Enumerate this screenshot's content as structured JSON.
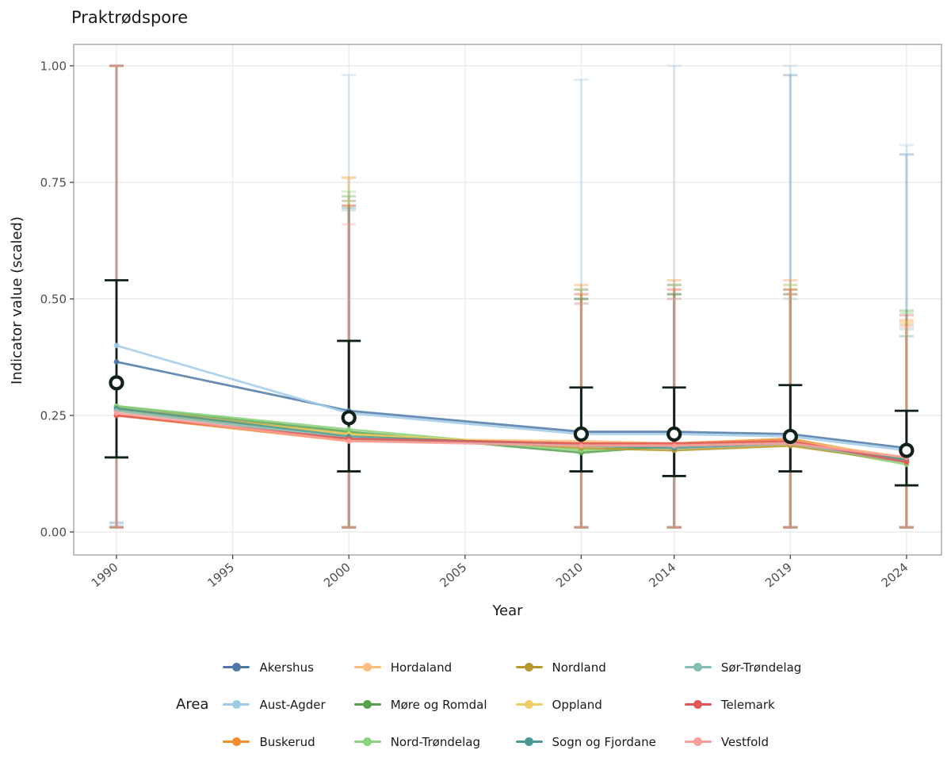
{
  "chart_data": {
    "type": "line",
    "title": "Praktrødspore",
    "xlabel": "Year",
    "ylabel": "Indicator value (scaled)",
    "legend_title": "Area",
    "legend_position": "bottom",
    "grid": "major gridlines only, light gray, white panel with gray border",
    "x_tick_years": [
      1990,
      1995,
      2000,
      2005,
      2010,
      2014,
      2019,
      2024
    ],
    "x_tick_labels": [
      "1990",
      "1995",
      "2000",
      "2005",
      "2010",
      "2014",
      "2019",
      "2024"
    ],
    "y_tick_values": [
      0,
      0.25,
      0.5,
      0.75,
      1
    ],
    "y_tick_labels": [
      "0.00",
      "0.25",
      "0.50",
      "0.75",
      "1.00"
    ],
    "xlim": [
      1988.2,
      2025.5
    ],
    "ylim": [
      0,
      1
    ],
    "years": [
      1990,
      2000,
      2010,
      2014,
      2019,
      2024
    ],
    "series": [
      {
        "name": "Akershus",
        "color": "#4E79A7",
        "values": [
          0.365,
          0.26,
          0.215,
          0.215,
          0.21,
          0.18
        ],
        "lo": [
          0.02,
          0.01,
          0.01,
          0.01,
          0.01,
          0.01
        ],
        "hi": [
          1.0,
          0.71,
          0.52,
          0.53,
          0.98,
          0.81
        ]
      },
      {
        "name": "Aust-Agder",
        "color": "#A0CBE8",
        "values": [
          0.4,
          0.255,
          0.21,
          0.21,
          0.205,
          0.175
        ],
        "lo": [
          0.015,
          0.01,
          0.01,
          0.01,
          0.01,
          0.01
        ],
        "hi": [
          1.0,
          0.98,
          0.97,
          1.0,
          1.0,
          0.83
        ]
      },
      {
        "name": "Buskerud",
        "color": "#F28E2B",
        "values": [
          0.25,
          0.195,
          0.19,
          0.19,
          0.2,
          0.155
        ],
        "lo": [
          0.01,
          0.01,
          0.01,
          0.01,
          0.01,
          0.01
        ],
        "hi": [
          1.0,
          0.76,
          0.53,
          0.54,
          0.54,
          0.455
        ]
      },
      {
        "name": "Hordaland",
        "color": "#FFBE7D",
        "values": [
          0.26,
          0.2,
          0.195,
          0.19,
          0.195,
          0.16
        ],
        "lo": [
          0.01,
          0.01,
          0.01,
          0.01,
          0.01,
          0.01
        ],
        "hi": [
          1.0,
          0.76,
          0.52,
          0.53,
          0.53,
          0.45
        ]
      },
      {
        "name": "Møre og Romdal",
        "color": "#59A14F",
        "values": [
          0.27,
          0.215,
          0.17,
          0.185,
          0.19,
          0.15
        ],
        "lo": [
          0.01,
          0.01,
          0.01,
          0.01,
          0.01,
          0.01
        ],
        "hi": [
          1.0,
          0.72,
          0.5,
          0.51,
          0.52,
          0.475
        ]
      },
      {
        "name": "Nord-Trøndelag",
        "color": "#8CD17D",
        "values": [
          0.27,
          0.22,
          0.175,
          0.185,
          0.19,
          0.145
        ],
        "lo": [
          0.01,
          0.01,
          0.01,
          0.01,
          0.01,
          0.01
        ],
        "hi": [
          1.0,
          0.73,
          0.52,
          0.53,
          0.53,
          0.47
        ]
      },
      {
        "name": "Nordland",
        "color": "#B6992D",
        "values": [
          0.265,
          0.21,
          0.18,
          0.175,
          0.185,
          0.15
        ],
        "lo": [
          0.01,
          0.01,
          0.01,
          0.01,
          0.01,
          0.01
        ],
        "hi": [
          1.0,
          0.7,
          0.5,
          0.51,
          0.51,
          0.445
        ]
      },
      {
        "name": "Oppland",
        "color": "#F1CE63",
        "values": [
          0.26,
          0.21,
          0.185,
          0.185,
          0.19,
          0.15
        ],
        "lo": [
          0.01,
          0.01,
          0.01,
          0.01,
          0.01,
          0.01
        ],
        "hi": [
          1.0,
          0.71,
          0.51,
          0.52,
          0.52,
          0.45
        ]
      },
      {
        "name": "Sogn og Fjordane",
        "color": "#499894",
        "values": [
          0.265,
          0.205,
          0.185,
          0.18,
          0.19,
          0.155
        ],
        "lo": [
          0.01,
          0.01,
          0.01,
          0.01,
          0.01,
          0.01
        ],
        "hi": [
          1.0,
          0.695,
          0.5,
          0.51,
          0.51,
          0.42
        ]
      },
      {
        "name": "Sør-Trøndelag",
        "color": "#86BCB6",
        "values": [
          0.26,
          0.2,
          0.185,
          0.185,
          0.19,
          0.15
        ],
        "lo": [
          0.01,
          0.01,
          0.01,
          0.01,
          0.01,
          0.01
        ],
        "hi": [
          1.0,
          0.69,
          0.49,
          0.5,
          0.5,
          0.435
        ]
      },
      {
        "name": "Telemark",
        "color": "#E15759",
        "values": [
          0.25,
          0.2,
          0.19,
          0.19,
          0.195,
          0.15
        ],
        "lo": [
          0.01,
          0.01,
          0.01,
          0.01,
          0.01,
          0.01
        ],
        "hi": [
          1.0,
          0.7,
          0.51,
          0.52,
          0.52,
          0.465
        ]
      },
      {
        "name": "Vestfold",
        "color": "#FF9D9A",
        "values": [
          0.255,
          0.195,
          0.185,
          0.185,
          0.19,
          0.16
        ],
        "lo": [
          0.01,
          0.01,
          0.01,
          0.01,
          0.01,
          0.01
        ],
        "hi": [
          1.0,
          0.66,
          0.49,
          0.5,
          0.51,
          0.44
        ]
      }
    ],
    "mean_series": {
      "name": "Mean (open circle)",
      "color": "#10211a",
      "values": [
        0.32,
        0.245,
        0.21,
        0.21,
        0.205,
        0.175
      ],
      "lo": [
        0.16,
        0.13,
        0.13,
        0.12,
        0.13,
        0.1
      ],
      "hi": [
        0.54,
        0.41,
        0.31,
        0.31,
        0.315,
        0.26
      ]
    },
    "style_colors": {
      "gridline": "#ebebeb",
      "panel_border": "#969696",
      "tick": "#333333",
      "tick_label": "#4d4d4d",
      "text": "#1a1a1a"
    }
  }
}
